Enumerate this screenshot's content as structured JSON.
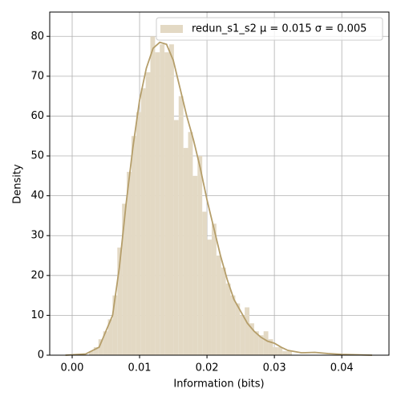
{
  "chart_data": {
    "type": "histogram",
    "xlabel": "Information (bits)",
    "ylabel": "Density",
    "xlim": [
      -0.00333,
      0.047
    ],
    "ylim": [
      0,
      86.1
    ],
    "xticks": [
      {
        "value": 0,
        "label": "0.00"
      },
      0.01,
      0.02,
      0.03,
      0.04
    ],
    "yticks": [
      0,
      10,
      20,
      30,
      40,
      50,
      60,
      70,
      80
    ],
    "grid": true,
    "legend": "upper right",
    "series": [
      {
        "name": "redun_s1_s2 μ = 0.015 σ = 0.005",
        "color": "#e3d9c4",
        "bins": [
          0.0025,
          0.0032,
          0.0039,
          0.0046,
          0.0053,
          0.006,
          0.0067,
          0.0074,
          0.0081,
          0.0088,
          0.0095,
          0.0102,
          0.0109,
          0.0116,
          0.0123,
          0.013,
          0.0137,
          0.0144,
          0.0151,
          0.0158,
          0.0165,
          0.0172,
          0.0179,
          0.0186,
          0.0193,
          0.02,
          0.0207,
          0.0214,
          0.0221,
          0.0228,
          0.0235,
          0.0242,
          0.0249,
          0.0256,
          0.0263,
          0.027,
          0.0277,
          0.0284,
          0.0291,
          0.0298,
          0.0305,
          0.0312,
          0.0319,
          0.0326
        ],
        "values": [
          1,
          2,
          4,
          6,
          9,
          15,
          27,
          38,
          46,
          55,
          61,
          67,
          71,
          80,
          76,
          78,
          76,
          78,
          59,
          65,
          52,
          56,
          45,
          50,
          36,
          29,
          33,
          25,
          22,
          18,
          15,
          13,
          10,
          12,
          8,
          6,
          5,
          6,
          4,
          2,
          2,
          1,
          1
        ]
      }
    ],
    "kde": {
      "color": "#b59e6a",
      "x": [
        -0.001,
        0.002,
        0.004,
        0.006,
        0.007,
        0.008,
        0.009,
        0.01,
        0.011,
        0.012,
        0.013,
        0.014,
        0.015,
        0.016,
        0.017,
        0.018,
        0.019,
        0.02,
        0.021,
        0.022,
        0.023,
        0.024,
        0.025,
        0.026,
        0.027,
        0.028,
        0.029,
        0.03,
        0.031,
        0.032,
        0.034,
        0.036,
        0.038,
        0.04,
        0.0445
      ],
      "values": [
        0,
        0.3,
        2,
        10,
        22,
        38,
        52,
        64,
        72,
        77,
        78.5,
        78,
        74,
        67,
        60,
        54,
        47,
        39,
        32,
        25,
        19,
        14,
        11,
        8,
        6,
        4.5,
        3.5,
        3,
        2,
        1.2,
        0.6,
        0.7,
        0.4,
        0.2,
        0
      ]
    }
  }
}
